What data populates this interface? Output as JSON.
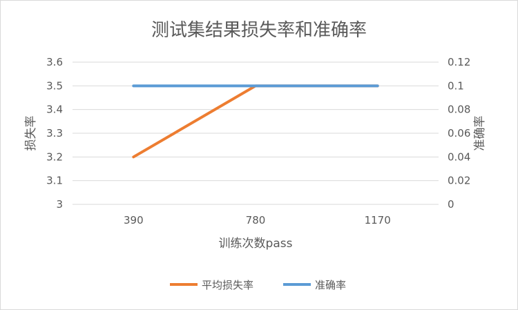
{
  "chart_data": {
    "type": "line",
    "title": "测试集结果损失率和准确率",
    "xlabel": "训练次数pass",
    "ylabel_left": "损失率",
    "ylabel_right": "准确率",
    "categories": [
      "390",
      "780",
      "1170"
    ],
    "y_left": {
      "min": 3,
      "max": 3.6,
      "step": 0.1,
      "ticks": [
        "3",
        "3.1",
        "3.2",
        "3.3",
        "3.4",
        "3.5",
        "3.6"
      ]
    },
    "y_right": {
      "min": 0,
      "max": 0.12,
      "step": 0.02,
      "ticks": [
        "0",
        "0.02",
        "0.04",
        "0.06",
        "0.08",
        "0.1",
        "0.12"
      ]
    },
    "series": [
      {
        "name": "平均损失率",
        "axis": "left",
        "color": "#ed7d31",
        "values": [
          3.2,
          3.5,
          3.5
        ]
      },
      {
        "name": "准确率",
        "axis": "right",
        "color": "#5b9bd5",
        "values": [
          0.1,
          0.1,
          0.1
        ]
      }
    ],
    "grid": true,
    "legend": "bottom"
  }
}
